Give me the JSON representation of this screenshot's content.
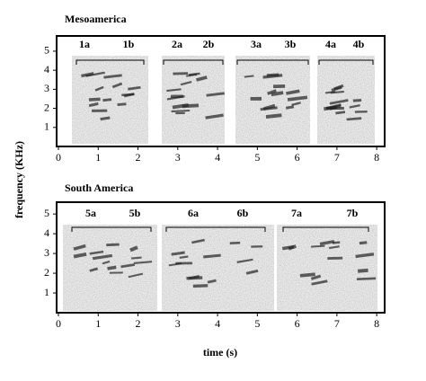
{
  "chart_data": [
    {
      "type": "spectrogram",
      "title": "Mesoamerica",
      "segment_labels": [
        "1a",
        "1b",
        "2a",
        "2b",
        "3a",
        "3b",
        "4a",
        "4b"
      ],
      "xlim": [
        0,
        8.2
      ],
      "xticks": [
        0,
        1,
        2,
        3,
        4,
        5,
        6,
        7,
        8
      ],
      "ylim": [
        0,
        5.8
      ],
      "yticks": [
        1,
        2,
        3,
        4,
        5
      ]
    },
    {
      "type": "spectrogram",
      "title": "South America",
      "segment_labels": [
        "5a",
        "5b",
        "6a",
        "6b",
        "7a",
        "7b"
      ],
      "xlim": [
        0,
        8.2
      ],
      "xticks": [
        0,
        1,
        2,
        3,
        4,
        5,
        6,
        7,
        8
      ],
      "ylim": [
        0,
        5.6
      ],
      "yticks": [
        1,
        2,
        3,
        4,
        5
      ]
    }
  ],
  "y_label": "frequency (KHz)",
  "x_label": "time (s)"
}
